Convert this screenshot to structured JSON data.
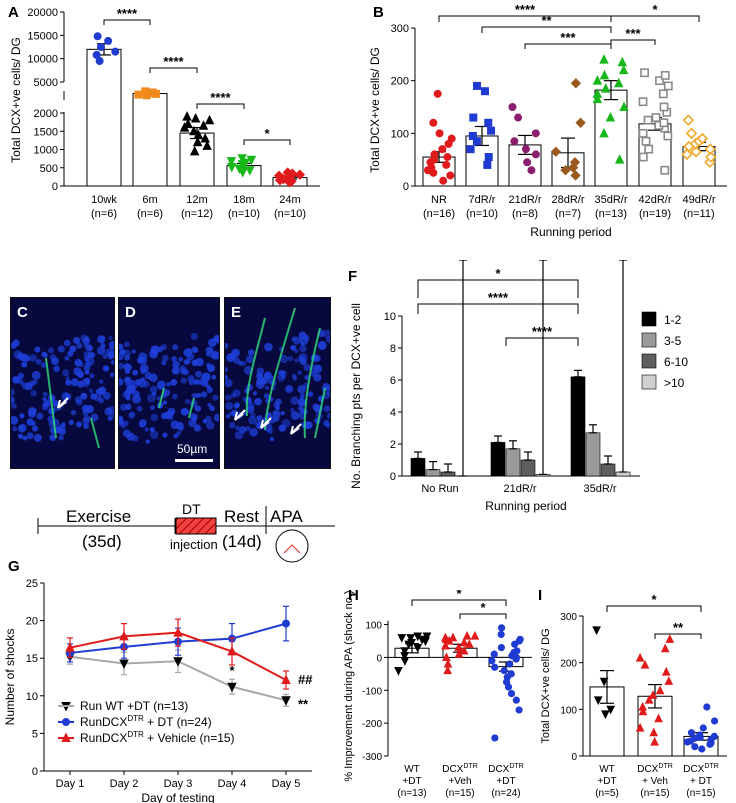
{
  "panel_labels": {
    "a": "A",
    "b": "B",
    "c": "C",
    "d": "D",
    "e": "E",
    "f": "F",
    "g": "G",
    "h": "H",
    "i": "I"
  },
  "scale_bar": "50µm",
  "timeline": {
    "exercise": "Exercise",
    "exercise_dur": "(35d)",
    "dt": "DT",
    "injection": "injection",
    "rest": "Rest",
    "rest_dur": "(14d)",
    "apa": "APA"
  },
  "colors": {
    "black": "#000000",
    "blue": "#1f3bd1",
    "orange": "#f08a1c",
    "green": "#18b81c",
    "red": "#e01b1b",
    "purple": "#8c1e6e",
    "brown": "#9a5a1e",
    "gray": "#8a8a8a",
    "gold": "#f0a82a",
    "nucleus": "#1e3fd8",
    "neuron": "#2fd17a"
  },
  "chart_data": [
    {
      "id": "A",
      "type": "bar",
      "ylabel": "Total DCX+ve cells/ DG",
      "categories": [
        "10wk",
        "6m",
        "12m",
        "18m",
        "24m"
      ],
      "ns": [
        "(n=6)",
        "(n=6)",
        "(n=12)",
        "(n=10)",
        "(n=10)"
      ],
      "values": [
        12000,
        4300,
        1450,
        560,
        230
      ],
      "errors": [
        1200,
        300,
        150,
        60,
        40
      ],
      "yticks": [
        "0",
        "500",
        "1000",
        "1500",
        "2000",
        "5000",
        "10000",
        "15000",
        "20000"
      ],
      "sig": [
        "****",
        "****",
        "****",
        "*"
      ],
      "points": [
        [
          9500,
          10800,
          11500,
          12500,
          13800,
          14800
        ],
        [
          3800,
          4000,
          4200,
          4400,
          4600,
          4900
        ],
        [
          950,
          1100,
          1200,
          1300,
          1400,
          1500,
          1600,
          1700,
          1800,
          1850,
          1900,
          1650
        ],
        [
          380,
          430,
          480,
          520,
          560,
          600,
          640,
          680,
          720,
          760
        ],
        [
          100,
          130,
          160,
          190,
          220,
          250,
          280,
          310,
          340,
          370
        ]
      ]
    },
    {
      "id": "B",
      "type": "bar",
      "ylabel": "Total DCX+ve cells/ DG",
      "xlabel": "Running period",
      "categories": [
        "NR",
        "7dR/r",
        "21dR/r",
        "28dR/r",
        "35dR/r",
        "42dR/r",
        "49dR/r"
      ],
      "ns": [
        "(n=16)",
        "(n=10)",
        "(n=8)",
        "(n=7)",
        "(n=13)",
        "(n=19)",
        "(n=11)"
      ],
      "values": [
        55,
        95,
        78,
        63,
        182,
        118,
        75
      ],
      "errors": [
        10,
        18,
        18,
        28,
        18,
        12,
        8
      ],
      "yticks": [
        "0",
        "100",
        "200",
        "300"
      ],
      "ylim": [
        0,
        300
      ],
      "sig": [
        "****",
        "**",
        "***",
        "***",
        "*"
      ],
      "points": [
        [
          10,
          20,
          25,
          30,
          35,
          40,
          45,
          50,
          55,
          60,
          70,
          80,
          90,
          100,
          120,
          175
        ],
        [
          40,
          55,
          70,
          85,
          95,
          105,
          120,
          130,
          180,
          190
        ],
        [
          30,
          45,
          60,
          70,
          85,
          100,
          130,
          150
        ],
        [
          20,
          30,
          35,
          45,
          65,
          120,
          195
        ],
        [
          50,
          100,
          130,
          150,
          165,
          175,
          185,
          195,
          200,
          210,
          220,
          235,
          240
        ],
        [
          30,
          55,
          70,
          85,
          95,
          100,
          110,
          115,
          120,
          125,
          130,
          140,
          150,
          160,
          175,
          190,
          200,
          210,
          215
        ],
        [
          45,
          55,
          60,
          65,
          70,
          75,
          80,
          85,
          90,
          100,
          125
        ]
      ]
    },
    {
      "id": "F",
      "type": "bar",
      "ylabel": "No. Branching pts per DCX+ve cell",
      "xlabel": "Running period",
      "categories": [
        "No Run",
        "21dR/r",
        "35dR/r"
      ],
      "series": [
        {
          "name": "1-2",
          "values": [
            1.1,
            2.1,
            6.2
          ],
          "errors": [
            0.4,
            0.5,
            1.5
          ]
        },
        {
          "name": "3-5",
          "values": [
            0.4,
            1.7,
            2.7
          ],
          "errors": [
            0.2,
            0.5,
            1.0
          ]
        },
        {
          "name": "6-10",
          "values": [
            0.25,
            1.0,
            0.75
          ],
          "errors": [
            0.2,
            0.4,
            0.5
          ]
        },
        {
          "name": ">10",
          "values": [
            0.0,
            0.1,
            0.25
          ],
          "errors": [
            0.05,
            0.1,
            0.2
          ]
        }
      ],
      "yticks": [
        "0",
        "2",
        "4",
        "6",
        "8",
        "10"
      ],
      "ylim": [
        0,
        10
      ],
      "sig": [
        "*",
        "****",
        "****"
      ],
      "series_colors": [
        "#000000",
        "#9a9a9a",
        "#5e5e5e",
        "#d0d0d0"
      ]
    },
    {
      "id": "G",
      "type": "line",
      "ylabel": "Number of shocks",
      "xlabel": "Day of testing",
      "categories": [
        "Day 1",
        "Day 2",
        "Day 3",
        "Day 4",
        "Day 5"
      ],
      "yticks": [
        "0",
        "5",
        "10",
        "15",
        "20",
        "25"
      ],
      "ylim": [
        0,
        25
      ],
      "series": [
        {
          "name": "Run WT +DT (n=13)",
          "values": [
            15.2,
            14.3,
            14.6,
            11.2,
            9.4
          ],
          "errors": [
            1.0,
            1.5,
            1.5,
            1.0,
            0.8
          ]
        },
        {
          "name": "RunDCXDTR + DT (n=24)",
          "values": [
            15.7,
            16.5,
            17.2,
            17.6,
            19.6
          ],
          "errors": [
            1.2,
            1.5,
            1.8,
            2.0,
            2.3
          ]
        },
        {
          "name": "RunDCXDTR + Vehicle (n=15)",
          "values": [
            16.4,
            17.9,
            18.4,
            15.9,
            12.1
          ],
          "errors": [
            1.3,
            1.7,
            1.8,
            1.8,
            1.2
          ]
        }
      ],
      "legend": [
        "Run WT +DT (n=13)",
        "RunDCX",
        "DTR",
        " + DT (n=24)",
        "RunDCX",
        "DTR",
        " + Vehicle (n=15)"
      ],
      "annotations": [
        "*",
        "##",
        "**"
      ]
    },
    {
      "id": "H",
      "type": "bar",
      "ylabel": "% Improvement during APA (shock no.)",
      "categories": [
        "WT +DT",
        "DCXDTR +Veh",
        "DCXDTR +DT"
      ],
      "cat_lines": [
        [
          "WT",
          "+DT",
          "(n=13)"
        ],
        [
          "DCX",
          "DTR",
          "+Veh",
          "(n=15)"
        ],
        [
          "DCX",
          "DTR",
          "+DT",
          "(n=24)"
        ]
      ],
      "values": [
        28,
        28,
        -28
      ],
      "errors": [
        14,
        12,
        14
      ],
      "yticks": [
        "-300",
        "-200",
        "-100",
        "0",
        "100"
      ],
      "ylim": [
        -300,
        120
      ],
      "sig": [
        "*",
        "*"
      ],
      "points": [
        [
          -40,
          -10,
          5,
          20,
          30,
          40,
          45,
          50,
          55,
          60,
          60,
          65,
          65
        ],
        [
          -40,
          -20,
          0,
          10,
          20,
          30,
          35,
          40,
          45,
          50,
          55,
          60,
          60,
          65,
          65
        ],
        [
          -245,
          -160,
          -130,
          -110,
          -90,
          -75,
          -60,
          -50,
          -40,
          -30,
          -20,
          -10,
          -5,
          0,
          5,
          10,
          15,
          20,
          30,
          40,
          50,
          55,
          70,
          90
        ]
      ]
    },
    {
      "id": "I",
      "type": "bar",
      "ylabel": "Total DCX+ve cells/ DG",
      "categories": [
        "WT +DT",
        "DCXDTR + Veh",
        "DCXDTR + DT"
      ],
      "cat_lines": [
        [
          "WT",
          "+DT",
          "(n=5)"
        ],
        [
          "DCX",
          "DTR",
          "+ Veh",
          "(n=15)"
        ],
        [
          "DCX",
          "DTR",
          "+ DT",
          "(n=15)"
        ]
      ],
      "values": [
        148,
        128,
        42
      ],
      "errors": [
        35,
        25,
        8
      ],
      "yticks": [
        "0",
        "100",
        "200",
        "300"
      ],
      "ylim": [
        0,
        300
      ],
      "sig": [
        "*",
        "**"
      ],
      "points": [
        [
          90,
          100,
          120,
          160,
          270
        ],
        [
          30,
          50,
          60,
          80,
          95,
          105,
          120,
          130,
          140,
          160,
          180,
          195,
          210,
          230,
          250
        ],
        [
          15,
          20,
          25,
          28,
          30,
          32,
          35,
          38,
          40,
          42,
          45,
          50,
          60,
          75,
          105
        ]
      ]
    }
  ]
}
